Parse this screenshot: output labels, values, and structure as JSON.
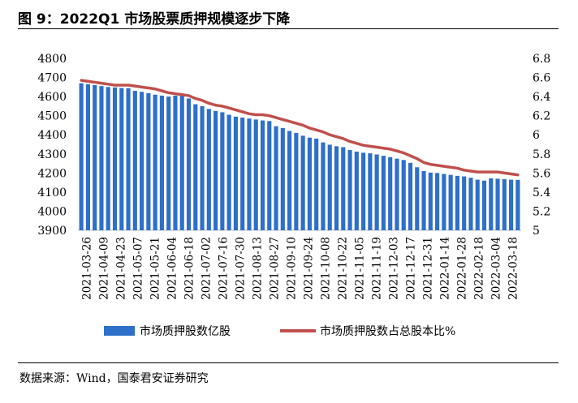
{
  "title": "图 9：2022Q1 市场股票质押规模逐步下降",
  "source": "数据来源：Wind，国泰君安证券研究",
  "chart_data": {
    "type": "bar",
    "title": "",
    "xlabel": "",
    "ylabel": "",
    "ylim": [
      3900,
      4800
    ],
    "y2lim": [
      5.0,
      6.8
    ],
    "yticks": [
      "4800",
      "4700",
      "4600",
      "4500",
      "4400",
      "4300",
      "4200",
      "4100",
      "4000",
      "3900"
    ],
    "y2ticks": [
      "6.8",
      "6.6",
      "6.4",
      "6.2",
      "6",
      "5.8",
      "5.6",
      "5.4",
      "5.2",
      "5"
    ],
    "xtick_labels": [
      "2021-03-26",
      "2021-04-09",
      "2021-04-23",
      "2021-05-07",
      "2021-05-21",
      "2021-06-04",
      "2021-06-18",
      "2021-07-02",
      "2021-07-16",
      "2021-07-30",
      "2021-08-13",
      "2021-08-27",
      "2021-09-10",
      "2021-09-24",
      "2021-10-08",
      "2021-10-22",
      "2021-11-05",
      "2021-11-19",
      "2021-12-03",
      "2021-12-17",
      "2021-12-31",
      "2022-01-14",
      "2022-01-28",
      "2022-02-18",
      "2022-03-04",
      "2022-03-18"
    ],
    "legend_position": "bottom",
    "series": [
      {
        "name": "市场质押股数亿股",
        "type": "bar",
        "axis": "left",
        "color": "#2E6FC9",
        "values": [
          4670,
          4665,
          4660,
          4655,
          4650,
          4648,
          4645,
          4644,
          4630,
          4625,
          4618,
          4610,
          4605,
          4600,
          4605,
          4606,
          4590,
          4560,
          4550,
          4535,
          4525,
          4518,
          4505,
          4495,
          4490,
          4485,
          4480,
          4475,
          4472,
          4445,
          4435,
          4420,
          4410,
          4395,
          4385,
          4380,
          4360,
          4348,
          4340,
          4335,
          4320,
          4312,
          4306,
          4303,
          4297,
          4290,
          4283,
          4275,
          4268,
          4253,
          4230,
          4210,
          4202,
          4200,
          4195,
          4190,
          4185,
          4182,
          4175,
          4165,
          4160,
          4172,
          4170,
          4168,
          4165,
          4164
        ]
      },
      {
        "name": "市场质押股数占总股本比%",
        "type": "line",
        "axis": "right",
        "color": "#C0504D",
        "values": [
          6.57,
          6.56,
          6.55,
          6.54,
          6.53,
          6.52,
          6.52,
          6.52,
          6.51,
          6.5,
          6.49,
          6.48,
          6.46,
          6.44,
          6.43,
          6.42,
          6.41,
          6.38,
          6.36,
          6.33,
          6.31,
          6.3,
          6.28,
          6.26,
          6.24,
          6.22,
          6.21,
          6.21,
          6.2,
          6.18,
          6.16,
          6.14,
          6.12,
          6.1,
          6.07,
          6.05,
          6.03,
          6.0,
          5.98,
          5.96,
          5.93,
          5.91,
          5.89,
          5.88,
          5.87,
          5.86,
          5.85,
          5.83,
          5.81,
          5.78,
          5.75,
          5.71,
          5.69,
          5.68,
          5.67,
          5.66,
          5.65,
          5.63,
          5.62,
          5.61,
          5.61,
          5.61,
          5.61,
          5.6,
          5.59,
          5.58
        ]
      }
    ]
  }
}
